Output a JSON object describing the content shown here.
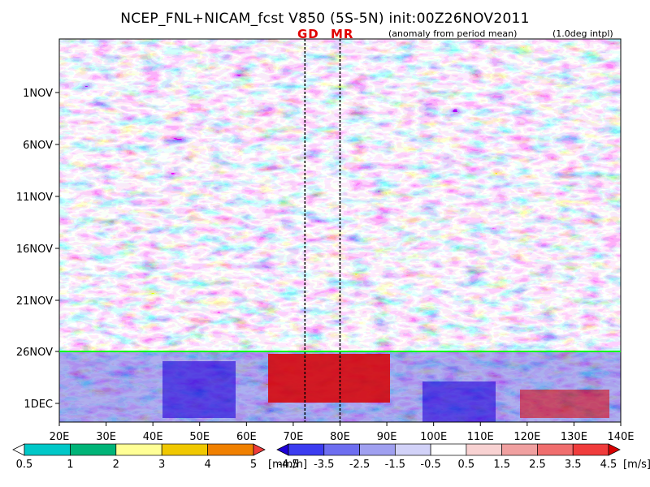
{
  "title": "NCEP_FNL+NICAM_fcst V850 (5S-5N) init:00Z26NOV2011",
  "markers": {
    "gd": "GD",
    "mr": "MR"
  },
  "notes": {
    "anomaly": "(anomaly from period mean)",
    "interp": "(1.0deg intpl)"
  },
  "chart_data": {
    "type": "heatmap",
    "title": "NCEP_FNL+NICAM_fcst V850 (5S-5N) init:00Z26NOV2011",
    "x_axis": {
      "range": [
        "20E",
        "140E"
      ],
      "ticks": [
        "20E",
        "30E",
        "40E",
        "50E",
        "60E",
        "70E",
        "80E",
        "90E",
        "100E",
        "110E",
        "120E",
        "130E",
        "140E"
      ]
    },
    "y_axis": {
      "ticks": [
        "1NOV",
        "6NOV",
        "11NOV",
        "16NOV",
        "21NOV",
        "26NOV",
        "1DEC"
      ],
      "direction": "time increases downward"
    },
    "vertical_lines": [
      {
        "label": "GD",
        "lon": 72.5
      },
      {
        "label": "MR",
        "lon": 80
      }
    ],
    "forecast_start_line": {
      "date": "26NOV",
      "color": "#00ff00"
    },
    "wind_colorbar": {
      "unit": "[m/s]",
      "labels": [
        "-4.5",
        "-3.5",
        "-2.5",
        "-1.5",
        "-0.5",
        "0.5",
        "1.5",
        "2.5",
        "3.5",
        "4.5"
      ],
      "colors": [
        "#1e00d8",
        "#3c3cf0",
        "#6e6ef0",
        "#a0a0f0",
        "#d2d2f8",
        "#ffffff",
        "#f8d2d2",
        "#f0a0a0",
        "#f06e6e",
        "#f03c3c",
        "#d80000"
      ]
    },
    "rain_colorbar": {
      "unit": "[mm/h]",
      "labels": [
        "0.5",
        "1",
        "2",
        "3",
        "4",
        "5"
      ],
      "colors": [
        "#ffffff",
        "#00c8c8",
        "#00b478",
        "#ffff96",
        "#f0c800",
        "#f08000",
        "#f03c3c"
      ]
    }
  }
}
